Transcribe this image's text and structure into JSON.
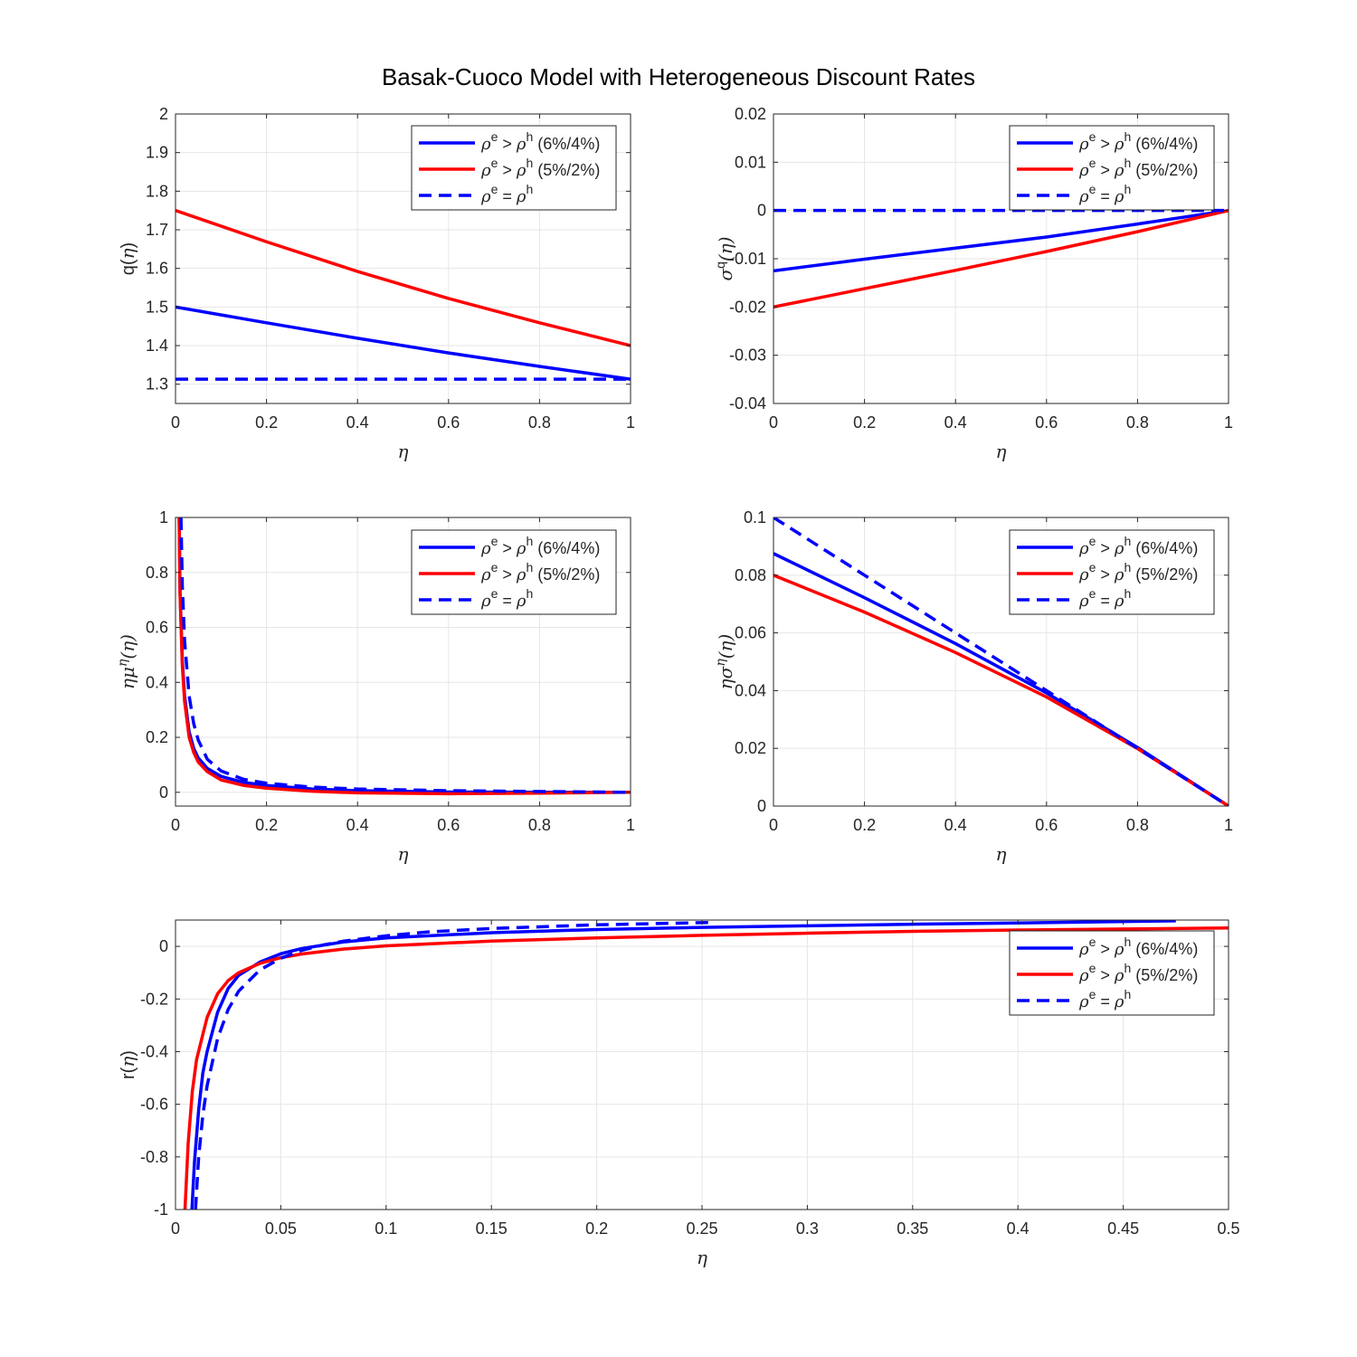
{
  "figure": {
    "title": "Basak-Cuoco Model with Heterogeneous Discount Rates",
    "colors": {
      "blue": "#0000ff",
      "red": "#ff0000",
      "grid": "#e6e6e6",
      "axis": "#262626"
    }
  },
  "legend": {
    "entries": [
      {
        "rho": "ρ",
        "e": "e",
        "op": ">",
        "h": "h",
        "note": "(6%/4%)",
        "color": "#0000ff",
        "dash": false
      },
      {
        "rho": "ρ",
        "e": "e",
        "op": ">",
        "h": "h",
        "note": "(5%/2%)",
        "color": "#ff0000",
        "dash": false
      },
      {
        "rho": "ρ",
        "e": "e",
        "op": "=",
        "h": "h",
        "note": "",
        "color": "#0000ff",
        "dash": true
      }
    ]
  },
  "chart_data": [
    {
      "type": "line",
      "id": "q",
      "ylabel_main": "q(",
      "ylabel_var": "η",
      "ylabel_close": ")",
      "xlabel": "η",
      "xlim": [
        0,
        1
      ],
      "ylim": [
        1.25,
        2
      ],
      "xticks": [
        0,
        0.2,
        0.4,
        0.6,
        0.8,
        1
      ],
      "xtick_labels": [
        "0",
        "0.2",
        "0.4",
        "0.6",
        "0.8",
        "1"
      ],
      "yticks": [
        1.3,
        1.4,
        1.5,
        1.6,
        1.7,
        1.8,
        1.9,
        2
      ],
      "ytick_labels": [
        "1.3",
        "1.4",
        "1.5",
        "1.6",
        "1.7",
        "1.8",
        "1.9",
        "2"
      ],
      "legend_position": "top-right",
      "series": [
        {
          "color": "#0000ff",
          "dash": false,
          "points": [
            [
              0,
              1.5
            ],
            [
              0.2,
              1.459
            ],
            [
              0.4,
              1.419
            ],
            [
              0.6,
              1.381
            ],
            [
              0.8,
              1.346
            ],
            [
              1,
              1.313
            ]
          ]
        },
        {
          "color": "#ff0000",
          "dash": false,
          "points": [
            [
              0,
              1.75
            ],
            [
              0.2,
              1.669
            ],
            [
              0.4,
              1.592
            ],
            [
              0.6,
              1.522
            ],
            [
              0.8,
              1.459
            ],
            [
              1,
              1.4
            ]
          ]
        },
        {
          "color": "#0000ff",
          "dash": true,
          "points": [
            [
              0,
              1.313
            ],
            [
              1,
              1.313
            ]
          ]
        }
      ]
    },
    {
      "type": "line",
      "id": "sigma_q",
      "ylabel_main": "σ",
      "ylabel_sup": "q",
      "ylabel_var": "(η)",
      "xlabel": "η",
      "xlim": [
        0,
        1
      ],
      "ylim": [
        -0.04,
        0.02
      ],
      "xticks": [
        0,
        0.2,
        0.4,
        0.6,
        0.8,
        1
      ],
      "xtick_labels": [
        "0",
        "0.2",
        "0.4",
        "0.6",
        "0.8",
        "1"
      ],
      "yticks": [
        -0.04,
        -0.03,
        -0.02,
        -0.01,
        0,
        0.01,
        0.02
      ],
      "ytick_labels": [
        "-0.04",
        "-0.03",
        "-0.02",
        "-0.01",
        "0",
        "0.01",
        "0.02"
      ],
      "legend_position": "top-right",
      "series": [
        {
          "color": "#0000ff",
          "dash": false,
          "points": [
            [
              0,
              -0.0125
            ],
            [
              0.2,
              -0.0101
            ],
            [
              0.4,
              -0.0078
            ],
            [
              0.6,
              -0.0055
            ],
            [
              0.8,
              -0.0028
            ],
            [
              1,
              0
            ]
          ]
        },
        {
          "color": "#ff0000",
          "dash": false,
          "points": [
            [
              0,
              -0.02
            ],
            [
              0.2,
              -0.0162
            ],
            [
              0.4,
              -0.0124
            ],
            [
              0.6,
              -0.0085
            ],
            [
              0.8,
              -0.0044
            ],
            [
              1,
              0
            ]
          ]
        },
        {
          "color": "#0000ff",
          "dash": true,
          "points": [
            [
              0,
              0
            ],
            [
              1,
              0
            ]
          ]
        }
      ]
    },
    {
      "type": "line",
      "id": "eta_mu",
      "ylabel_main": "ημ",
      "ylabel_sup": "η",
      "ylabel_var": "(η)",
      "xlabel": "η",
      "xlim": [
        0,
        1
      ],
      "ylim": [
        -0.05,
        1
      ],
      "xticks": [
        0,
        0.2,
        0.4,
        0.6,
        0.8,
        1
      ],
      "xtick_labels": [
        "0",
        "0.2",
        "0.4",
        "0.6",
        "0.8",
        "1"
      ],
      "yticks": [
        0,
        0.2,
        0.4,
        0.6,
        0.8,
        1
      ],
      "ytick_labels": [
        "0",
        "0.2",
        "0.4",
        "0.6",
        "0.8",
        "1"
      ],
      "legend_position": "top-right",
      "series": [
        {
          "color": "#0000ff",
          "dash": false,
          "points": [
            [
              0.008,
              1
            ],
            [
              0.01,
              0.73
            ],
            [
              0.015,
              0.48
            ],
            [
              0.02,
              0.35
            ],
            [
              0.03,
              0.22
            ],
            [
              0.04,
              0.16
            ],
            [
              0.05,
              0.125
            ],
            [
              0.07,
              0.087
            ],
            [
              0.1,
              0.058
            ],
            [
              0.15,
              0.036
            ],
            [
              0.2,
              0.025
            ],
            [
              0.3,
              0.012
            ],
            [
              0.4,
              0.006
            ],
            [
              0.6,
              0.001
            ],
            [
              0.8,
              0
            ],
            [
              1,
              0
            ]
          ]
        },
        {
          "color": "#ff0000",
          "dash": false,
          "points": [
            [
              0.008,
              1
            ],
            [
              0.01,
              0.72
            ],
            [
              0.015,
              0.46
            ],
            [
              0.02,
              0.33
            ],
            [
              0.03,
              0.2
            ],
            [
              0.04,
              0.145
            ],
            [
              0.05,
              0.11
            ],
            [
              0.07,
              0.075
            ],
            [
              0.1,
              0.045
            ],
            [
              0.15,
              0.025
            ],
            [
              0.2,
              0.015
            ],
            [
              0.3,
              0.004
            ],
            [
              0.4,
              -0.002
            ],
            [
              0.6,
              -0.005
            ],
            [
              0.8,
              -0.003
            ],
            [
              1,
              0
            ]
          ]
        },
        {
          "color": "#0000ff",
          "dash": true,
          "points": [
            [
              0.012,
              1
            ],
            [
              0.015,
              0.75
            ],
            [
              0.02,
              0.55
            ],
            [
              0.03,
              0.35
            ],
            [
              0.04,
              0.25
            ],
            [
              0.05,
              0.19
            ],
            [
              0.07,
              0.12
            ],
            [
              0.1,
              0.078
            ],
            [
              0.15,
              0.047
            ],
            [
              0.2,
              0.033
            ],
            [
              0.3,
              0.019
            ],
            [
              0.4,
              0.012
            ],
            [
              0.6,
              0.006
            ],
            [
              0.8,
              0.003
            ],
            [
              1,
              0
            ]
          ]
        }
      ]
    },
    {
      "type": "line",
      "id": "eta_sigma",
      "ylabel_main": "ησ",
      "ylabel_sup": "η",
      "ylabel_var": "(η)",
      "xlabel": "η",
      "xlim": [
        0,
        1
      ],
      "ylim": [
        0,
        0.1
      ],
      "xticks": [
        0,
        0.2,
        0.4,
        0.6,
        0.8,
        1
      ],
      "xtick_labels": [
        "0",
        "0.2",
        "0.4",
        "0.6",
        "0.8",
        "1"
      ],
      "yticks": [
        0,
        0.02,
        0.04,
        0.06,
        0.08,
        0.1
      ],
      "ytick_labels": [
        "0",
        "0.02",
        "0.04",
        "0.06",
        "0.08",
        "0.1"
      ],
      "legend_position": "top-right",
      "series": [
        {
          "color": "#0000ff",
          "dash": false,
          "points": [
            [
              0,
              0.0875
            ],
            [
              0.2,
              0.0722
            ],
            [
              0.4,
              0.0563
            ],
            [
              0.6,
              0.0392
            ],
            [
              0.8,
              0.0203
            ],
            [
              1,
              0
            ]
          ]
        },
        {
          "color": "#ff0000",
          "dash": false,
          "points": [
            [
              0,
              0.08
            ],
            [
              0.2,
              0.0672
            ],
            [
              0.4,
              0.0532
            ],
            [
              0.6,
              0.0378
            ],
            [
              0.8,
              0.0199
            ],
            [
              1,
              0
            ]
          ]
        },
        {
          "color": "#0000ff",
          "dash": true,
          "points": [
            [
              0,
              0.1
            ],
            [
              0.2,
              0.08
            ],
            [
              0.4,
              0.06
            ],
            [
              0.6,
              0.04
            ],
            [
              0.8,
              0.02
            ],
            [
              1,
              0
            ]
          ]
        }
      ]
    },
    {
      "type": "line",
      "id": "r",
      "ylabel_main": "r(",
      "ylabel_var": "η",
      "ylabel_close": ")",
      "xlabel": "η",
      "xlim": [
        0,
        0.5
      ],
      "ylim": [
        -1,
        0.1
      ],
      "xticks": [
        0,
        0.05,
        0.1,
        0.15,
        0.2,
        0.25,
        0.3,
        0.35,
        0.4,
        0.45,
        0.5
      ],
      "xtick_labels": [
        "0",
        "0.05",
        "0.1",
        "0.15",
        "0.2",
        "0.25",
        "0.3",
        "0.35",
        "0.4",
        "0.45",
        "0.5"
      ],
      "yticks": [
        -1,
        -0.8,
        -0.6,
        -0.4,
        -0.2,
        0
      ],
      "ytick_labels": [
        "-1",
        "-0.8",
        "-0.6",
        "-0.4",
        "-0.2",
        "0"
      ],
      "legend_position": "right",
      "series": [
        {
          "color": "#0000ff",
          "dash": false,
          "points": [
            [
              0.0078,
              -1
            ],
            [
              0.009,
              -0.82
            ],
            [
              0.011,
              -0.62
            ],
            [
              0.013,
              -0.48
            ],
            [
              0.015,
              -0.4
            ],
            [
              0.02,
              -0.25
            ],
            [
              0.025,
              -0.16
            ],
            [
              0.03,
              -0.11
            ],
            [
              0.04,
              -0.06
            ],
            [
              0.05,
              -0.028
            ],
            [
              0.06,
              -0.008
            ],
            [
              0.08,
              0.017
            ],
            [
              0.1,
              0.032
            ],
            [
              0.15,
              0.052
            ],
            [
              0.2,
              0.064
            ],
            [
              0.25,
              0.072
            ],
            [
              0.3,
              0.078
            ],
            [
              0.35,
              0.084
            ],
            [
              0.4,
              0.089
            ],
            [
              0.475,
              0.097
            ]
          ]
        },
        {
          "color": "#ff0000",
          "dash": false,
          "points": [
            [
              0.0045,
              -1
            ],
            [
              0.006,
              -0.75
            ],
            [
              0.008,
              -0.55
            ],
            [
              0.01,
              -0.43
            ],
            [
              0.015,
              -0.27
            ],
            [
              0.02,
              -0.18
            ],
            [
              0.025,
              -0.13
            ],
            [
              0.03,
              -0.1
            ],
            [
              0.04,
              -0.065
            ],
            [
              0.05,
              -0.043
            ],
            [
              0.06,
              -0.029
            ],
            [
              0.08,
              -0.01
            ],
            [
              0.1,
              0.002
            ],
            [
              0.15,
              0.02
            ],
            [
              0.2,
              0.032
            ],
            [
              0.25,
              0.042
            ],
            [
              0.3,
              0.05
            ],
            [
              0.35,
              0.057
            ],
            [
              0.4,
              0.062
            ],
            [
              0.45,
              0.066
            ],
            [
              0.5,
              0.07
            ]
          ]
        },
        {
          "color": "#0000ff",
          "dash": true,
          "points": [
            [
              0.0095,
              -1
            ],
            [
              0.011,
              -0.8
            ],
            [
              0.013,
              -0.64
            ],
            [
              0.015,
              -0.53
            ],
            [
              0.02,
              -0.35
            ],
            [
              0.025,
              -0.24
            ],
            [
              0.03,
              -0.17
            ],
            [
              0.04,
              -0.09
            ],
            [
              0.05,
              -0.045
            ],
            [
              0.06,
              -0.015
            ],
            [
              0.07,
              0.005
            ],
            [
              0.08,
              0.02
            ],
            [
              0.1,
              0.04
            ],
            [
              0.12,
              0.055
            ],
            [
              0.15,
              0.068
            ],
            [
              0.2,
              0.082
            ],
            [
              0.25,
              0.09
            ],
            [
              0.255,
              0.091
            ]
          ]
        }
      ]
    }
  ]
}
